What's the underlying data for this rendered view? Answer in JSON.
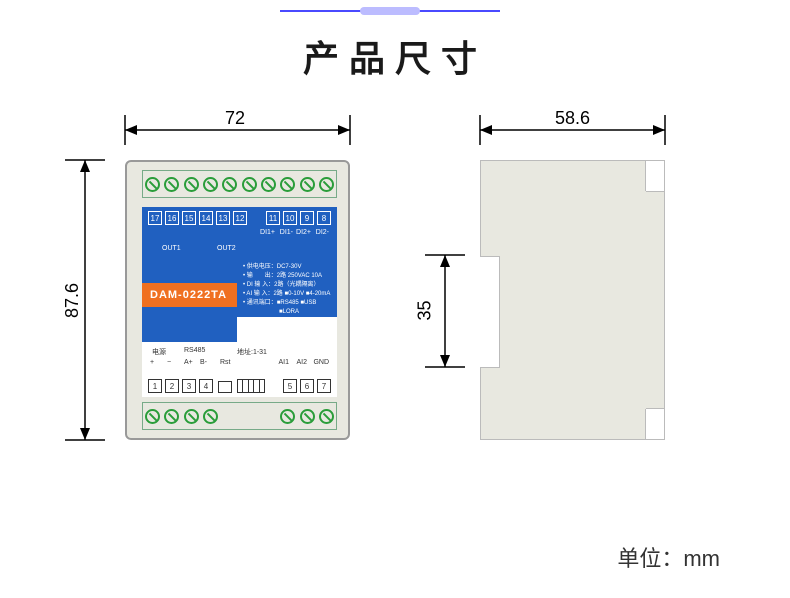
{
  "title": "产品尺寸",
  "unit_label": "单位：mm",
  "dimensions": {
    "width_front": "72",
    "height_front": "87.6",
    "width_side": "58.6",
    "notch_height": "35"
  },
  "model": "DAM-0222TA",
  "top_pins_left": [
    "17",
    "16",
    "15",
    "14",
    "13",
    "12"
  ],
  "top_pins_right": [
    "11",
    "10",
    "9",
    "8"
  ],
  "top_out_labels": [
    "OUT1",
    "OUT2"
  ],
  "top_di_labels": [
    "DI1+",
    "DI1-",
    "DI2+",
    "DI2-"
  ],
  "info_lines": [
    "• 供电电压：DC7-30V",
    "• 输　　出：2路 250VAC 10A",
    "• DI 输 入：2路（光耦隔离）",
    "• AI 输 入：2路 ■0-10V ■4-20mA",
    "• 通讯端口：■RS485 ■USB",
    "　　　　　　■LORA"
  ],
  "bottom_labels": {
    "power": "电源",
    "rs485": "RS485",
    "addr": "地址:1-31",
    "plus": "+",
    "minus": "−",
    "ap": "A+",
    "bm": "B-",
    "rst": "Rst",
    "ai1": "AI1",
    "ai2": "AI2",
    "gnd": "GND"
  },
  "bottom_pins_left": [
    "1",
    "2",
    "3",
    "4"
  ],
  "bottom_pins_right": [
    "5",
    "6",
    "7"
  ],
  "colors": {
    "blue": "#2060c0",
    "orange": "#f07020",
    "body": "#e8e8e0",
    "screw": "#2a9d3a",
    "dim": "#000000"
  },
  "dim_style": {
    "stroke_width": 1.5,
    "arrow_size": 10,
    "font_size": 18
  }
}
